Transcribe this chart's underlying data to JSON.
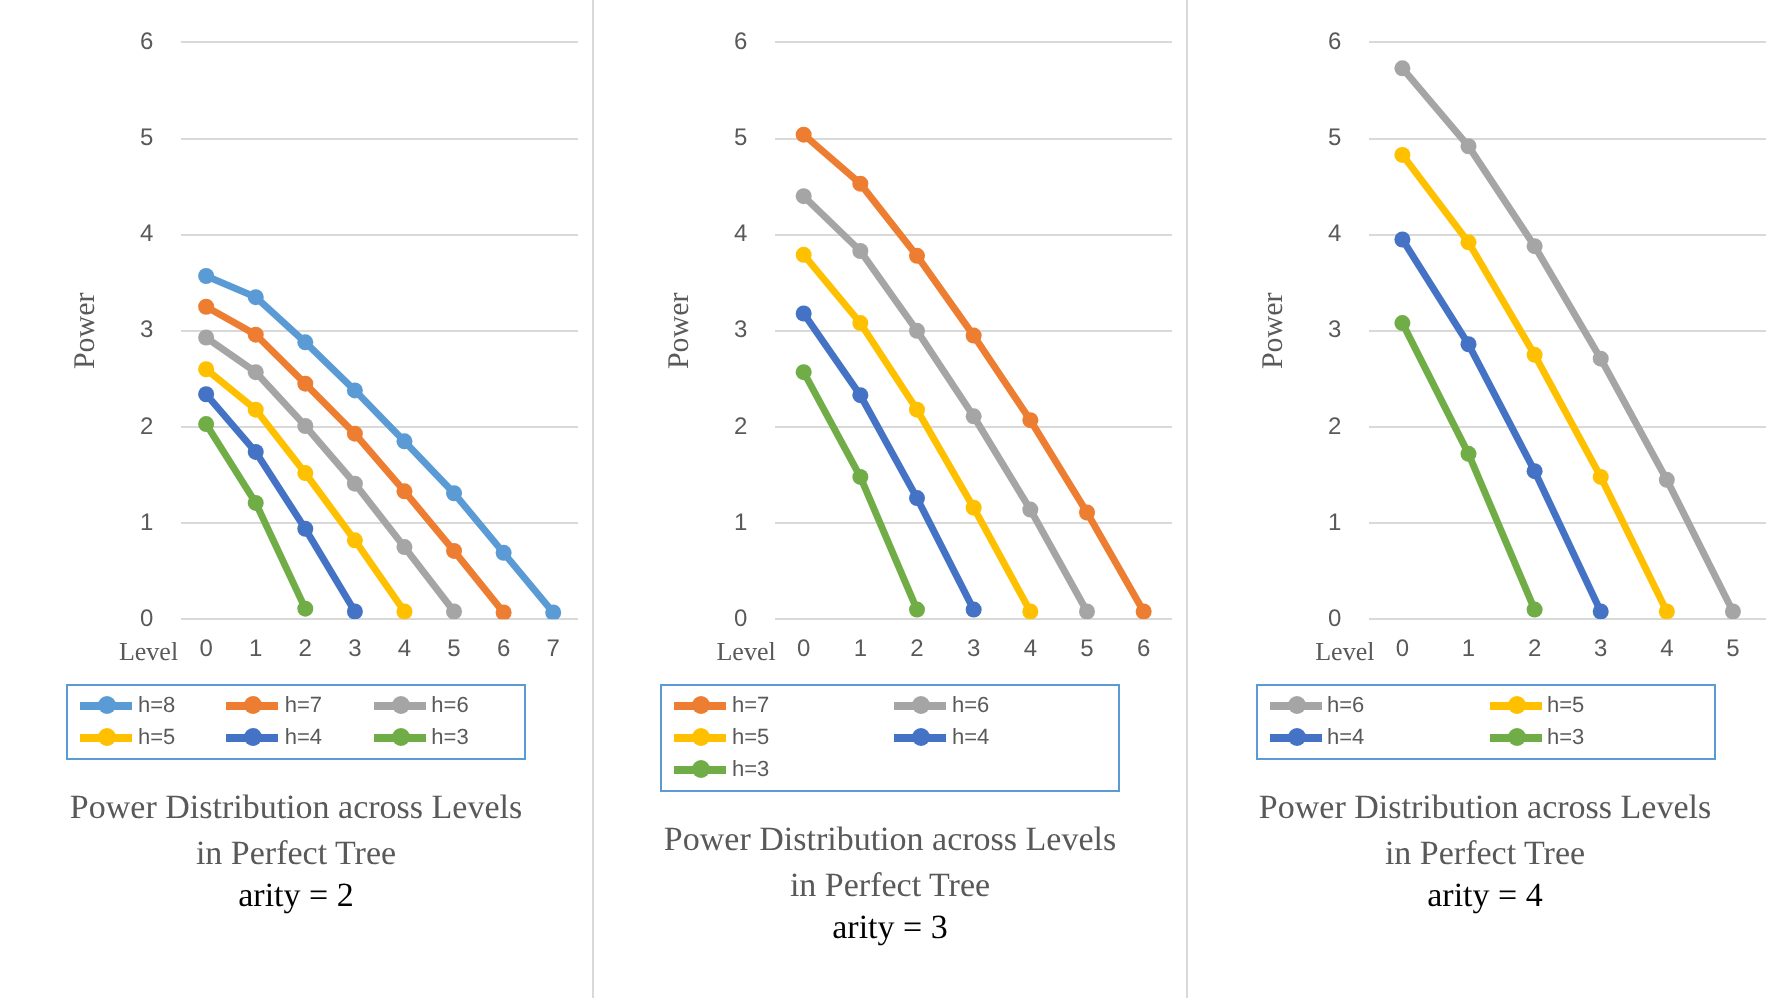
{
  "chart_data": [
    {
      "type": "line",
      "title": "Power Distribution across Levels in Perfect Tree",
      "subtitle": "arity = 2",
      "xlabel": "Level",
      "ylabel": "Power",
      "categories": [
        "0",
        "1",
        "2",
        "3",
        "4",
        "5",
        "6",
        "7"
      ],
      "ylim": [
        0,
        6
      ],
      "yticks": [
        0,
        1,
        2,
        3,
        4,
        5,
        6
      ],
      "grid": "y",
      "legend": "bottom",
      "marker": "circle",
      "line_style": "solid",
      "series": [
        {
          "name": "h=8",
          "color": "#5b9bd5",
          "values": [
            3.57,
            3.35,
            2.88,
            2.38,
            1.85,
            1.31,
            0.69,
            0.07
          ]
        },
        {
          "name": "h=7",
          "color": "#ed7d31",
          "values": [
            3.25,
            2.96,
            2.45,
            1.93,
            1.33,
            0.71,
            0.07,
            null
          ]
        },
        {
          "name": "h=6",
          "color": "#a5a5a5",
          "values": [
            2.93,
            2.57,
            2.01,
            1.41,
            0.75,
            0.08,
            null,
            null
          ]
        },
        {
          "name": "h=5",
          "color": "#ffc000",
          "values": [
            2.6,
            2.18,
            1.52,
            0.82,
            0.08,
            null,
            null,
            null
          ]
        },
        {
          "name": "h=4",
          "color": "#4472c4",
          "values": [
            2.34,
            1.74,
            0.94,
            0.08,
            null,
            null,
            null,
            null
          ]
        },
        {
          "name": "h=3",
          "color": "#70ad47",
          "values": [
            2.03,
            1.21,
            0.11,
            null,
            null,
            null,
            null,
            null
          ]
        }
      ]
    },
    {
      "type": "line",
      "title": "Power Distribution across Levels in Perfect Tree",
      "subtitle": "arity = 3",
      "xlabel": "Level",
      "ylabel": "Power",
      "categories": [
        "0",
        "1",
        "2",
        "3",
        "4",
        "5",
        "6"
      ],
      "ylim": [
        0,
        6
      ],
      "yticks": [
        0,
        1,
        2,
        3,
        4,
        5,
        6
      ],
      "grid": "y",
      "legend": "bottom",
      "marker": "circle",
      "line_style": "solid",
      "series": [
        {
          "name": "h=7",
          "color": "#ed7d31",
          "values": [
            5.04,
            4.53,
            3.78,
            2.95,
            2.07,
            1.11,
            0.08
          ]
        },
        {
          "name": "h=6",
          "color": "#a5a5a5",
          "values": [
            4.4,
            3.83,
            3.0,
            2.11,
            1.14,
            0.08,
            null
          ]
        },
        {
          "name": "h=5",
          "color": "#ffc000",
          "values": [
            3.79,
            3.08,
            2.18,
            1.16,
            0.08,
            null,
            null
          ]
        },
        {
          "name": "h=4",
          "color": "#4472c4",
          "values": [
            3.18,
            2.33,
            1.26,
            0.1,
            null,
            null,
            null
          ]
        },
        {
          "name": "h=3",
          "color": "#70ad47",
          "values": [
            2.57,
            1.48,
            0.1,
            null,
            null,
            null,
            null
          ]
        }
      ]
    },
    {
      "type": "line",
      "title": "Power Distribution across Levels in Perfect Tree",
      "subtitle": "arity = 4",
      "xlabel": "Level",
      "ylabel": "Power",
      "categories": [
        "0",
        "1",
        "2",
        "3",
        "4",
        "5"
      ],
      "ylim": [
        0,
        6
      ],
      "yticks": [
        0,
        1,
        2,
        3,
        4,
        5,
        6
      ],
      "grid": "y",
      "legend": "bottom",
      "marker": "circle",
      "line_style": "solid",
      "series": [
        {
          "name": "h=6",
          "color": "#a5a5a5",
          "values": [
            5.73,
            4.92,
            3.88,
            2.71,
            1.45,
            0.08
          ]
        },
        {
          "name": "h=5",
          "color": "#ffc000",
          "values": [
            4.83,
            3.92,
            2.75,
            1.48,
            0.08,
            null
          ]
        },
        {
          "name": "h=4",
          "color": "#4472c4",
          "values": [
            3.95,
            2.86,
            1.54,
            0.08,
            null,
            null
          ]
        },
        {
          "name": "h=3",
          "color": "#70ad47",
          "values": [
            3.08,
            1.72,
            0.1,
            null,
            null,
            null
          ]
        }
      ]
    }
  ]
}
